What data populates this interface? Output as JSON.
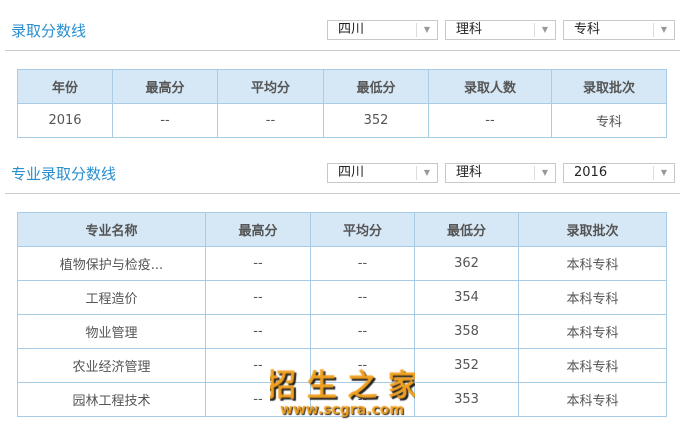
{
  "section1": {
    "title": "录取分数线",
    "selects": [
      "四川",
      "理科",
      "专科"
    ],
    "headers": [
      "年份",
      "最高分",
      "平均分",
      "最低分",
      "录取人数",
      "录取批次"
    ],
    "rows": [
      [
        "2016",
        "--",
        "--",
        "352",
        "--",
        "专科"
      ]
    ]
  },
  "section2": {
    "title": "专业录取分数线",
    "selects": [
      "四川",
      "理科",
      "2016"
    ],
    "headers": [
      "专业名称",
      "最高分",
      "平均分",
      "最低分",
      "录取批次"
    ],
    "rows": [
      [
        "植物保护与检疫...",
        "--",
        "--",
        "362",
        "本科专科"
      ],
      [
        "工程造价",
        "--",
        "--",
        "354",
        "本科专科"
      ],
      [
        "物业管理",
        "--",
        "--",
        "358",
        "本科专科"
      ],
      [
        "农业经济管理",
        "--",
        "--",
        "352",
        "本科专科"
      ],
      [
        "园林工程技术",
        "--",
        "--",
        "353",
        "本科专科"
      ]
    ]
  },
  "watermark": {
    "text": "招生之家",
    "url": "www.scgra.com",
    "color": "#f0a020"
  },
  "colors": {
    "title": "#2a8fd0",
    "header_bg": "#d6e8f6",
    "border": "#a8cbe6"
  }
}
